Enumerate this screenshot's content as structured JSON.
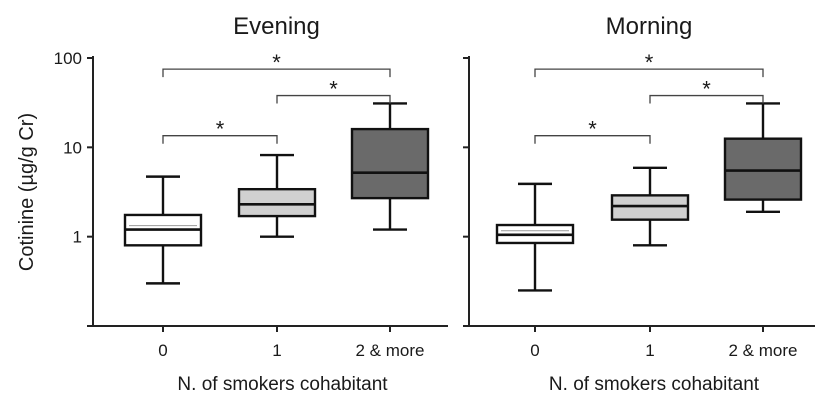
{
  "chart_data": {
    "type": "box",
    "ylabel": "Cotinine (µg/g Cr)",
    "yscale": "log",
    "ylim": [
      0.1,
      100
    ],
    "yticks": [
      1,
      10,
      100
    ],
    "ytick_labels": [
      "1",
      "10",
      "100"
    ],
    "xlabel": "N. of smokers cohabitant",
    "categories": [
      "0",
      "1",
      "2 & more"
    ],
    "box_colors": [
      "#ffffff",
      "#d0d0d0",
      "#6a6a6a"
    ],
    "panels": [
      {
        "title": "Evening",
        "boxes": [
          {
            "min": 0.3,
            "q1": 0.8,
            "median": 1.2,
            "q3": 1.75,
            "max": 4.7
          },
          {
            "min": 1.0,
            "q1": 1.7,
            "median": 2.3,
            "q3": 3.4,
            "max": 8.2
          },
          {
            "min": 1.2,
            "q1": 2.7,
            "median": 5.2,
            "q3": 16,
            "max": 31
          }
        ],
        "significance": [
          {
            "from": 0,
            "to": 1,
            "label": "*"
          },
          {
            "from": 1,
            "to": 2,
            "label": "*"
          },
          {
            "from": 0,
            "to": 2,
            "label": "*"
          }
        ]
      },
      {
        "title": "Morning",
        "boxes": [
          {
            "min": 0.25,
            "q1": 0.85,
            "median": 1.05,
            "q3": 1.35,
            "max": 3.9
          },
          {
            "min": 0.8,
            "q1": 1.55,
            "median": 2.2,
            "q3": 2.9,
            "max": 5.9
          },
          {
            "min": 1.9,
            "q1": 2.6,
            "median": 5.5,
            "q3": 12.5,
            "max": 31
          }
        ],
        "significance": [
          {
            "from": 0,
            "to": 1,
            "label": "*"
          },
          {
            "from": 1,
            "to": 2,
            "label": "*"
          },
          {
            "from": 0,
            "to": 2,
            "label": "*"
          }
        ]
      }
    ]
  }
}
